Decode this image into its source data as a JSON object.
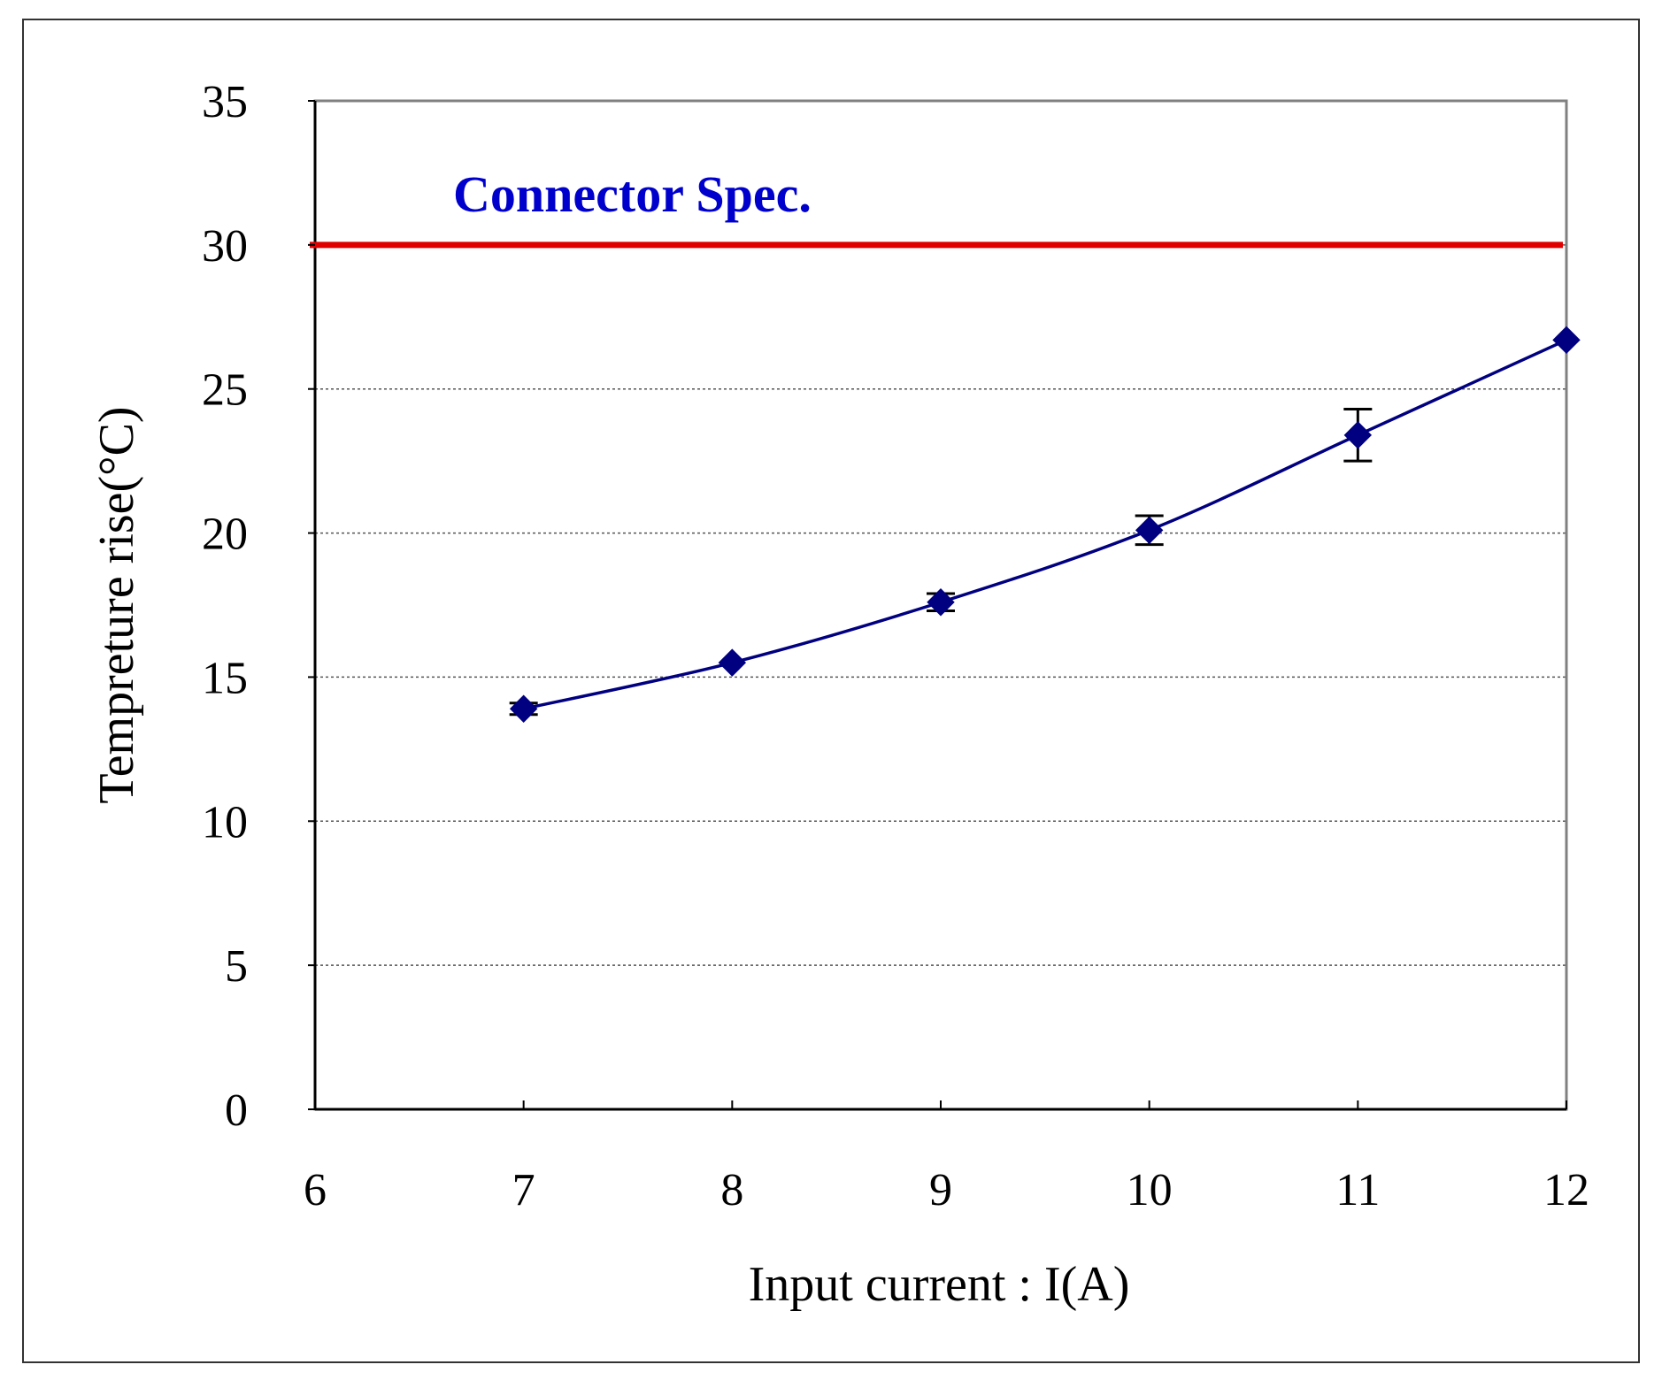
{
  "chart_data": {
    "type": "line",
    "title": "",
    "xlabel": "Input current : I(A)",
    "ylabel": "Tempreture rise(°C)",
    "xlim": [
      6,
      12
    ],
    "ylim": [
      0,
      35
    ],
    "x_ticks": [
      "6",
      "7",
      "8",
      "9",
      "10",
      "11",
      "12"
    ],
    "y_ticks": [
      "0",
      "5",
      "10",
      "15",
      "20",
      "25",
      "30",
      "35"
    ],
    "grid": "horizontal-dotted",
    "series": [
      {
        "x": [
          7,
          8,
          9,
          10,
          11,
          12
        ],
        "y": [
          13.9,
          15.5,
          17.6,
          20.1,
          23.4,
          26.7
        ],
        "error": [
          0.2,
          0.1,
          0.3,
          0.5,
          0.9,
          0.1
        ],
        "color": "#000080",
        "marker": "diamond"
      }
    ],
    "reference_line": {
      "y": 30,
      "label": "Connector Spec.",
      "color": "#e00000",
      "label_color": "#0000cc"
    }
  }
}
